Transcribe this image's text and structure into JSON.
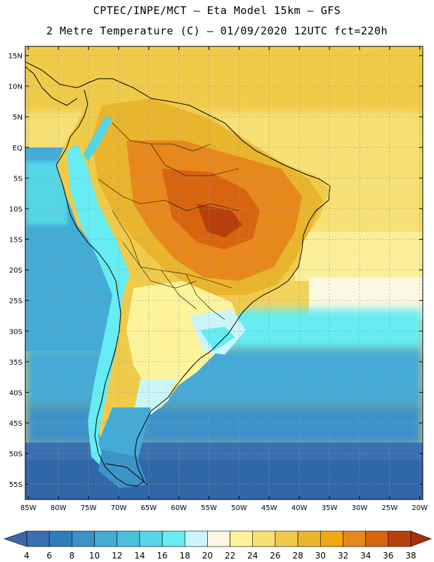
{
  "header": {
    "line1": "CPTEC/INPE/MCT –  Eta Model 15km – GFS",
    "line2": "2 Metre Temperature (C) – 01/09/2020 12UTC fct=220h"
  },
  "map": {
    "lat_labels": [
      "15N",
      "10N",
      "5N",
      "EQ",
      "5S",
      "10S",
      "15S",
      "20S",
      "25S",
      "30S",
      "35S",
      "40S",
      "45S",
      "50S",
      "55S"
    ],
    "lon_labels": [
      "85W",
      "80W",
      "75W",
      "70W",
      "65W",
      "60W",
      "55W",
      "50W",
      "45W",
      "40W",
      "35W",
      "30W",
      "25W",
      "20W"
    ],
    "lat_values": [
      15,
      10,
      5,
      0,
      -5,
      -10,
      -15,
      -20,
      -25,
      -30,
      -35,
      -40,
      -45,
      -50,
      -55
    ],
    "lon_values": [
      -85,
      -80,
      -75,
      -70,
      -65,
      -60,
      -55,
      -50,
      -45,
      -40,
      -35,
      -30,
      -25,
      -20
    ],
    "extent": {
      "lon_min": -85.5,
      "lon_max": -19.5,
      "lat_min": -57.5,
      "lat_max": 16.5
    }
  },
  "colorbar": {
    "labels": [
      "4",
      "6",
      "8",
      "10",
      "12",
      "14",
      "16",
      "18",
      "20",
      "22",
      "24",
      "26",
      "28",
      "30",
      "32",
      "34",
      "36",
      "38"
    ],
    "colors": [
      "#3a6fb0",
      "#2f7dbd",
      "#3c93c9",
      "#44aad6",
      "#4ac0dd",
      "#55d6e6",
      "#66ecf2",
      "#caf6fa",
      "#fdf8e1",
      "#fdf39a",
      "#f7e074",
      "#f0cb4a",
      "#e9b52d",
      "#f3a80f",
      "#e7881d",
      "#d86410",
      "#b9400c"
    ],
    "under_color": "#3c68a8",
    "over_color": "#a5300a"
  }
}
